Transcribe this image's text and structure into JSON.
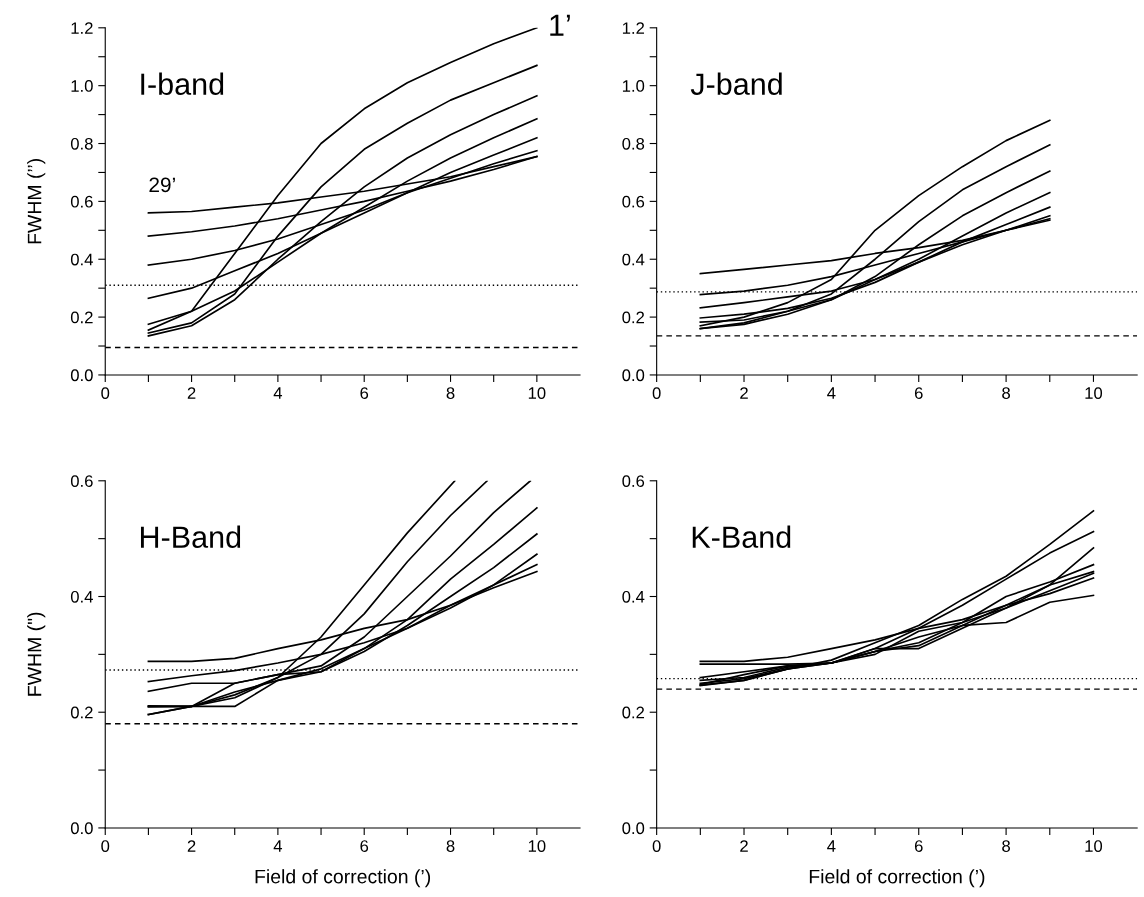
{
  "chart_data": [
    {
      "type": "line",
      "title": "I-band",
      "ylabel": "FWHM (’’)",
      "x": [
        1,
        2,
        3,
        4,
        5,
        6,
        7,
        8,
        9,
        10
      ],
      "xlim": [
        0,
        11
      ],
      "xticks": [
        0,
        {
          "value": 1,
          "label": null
        },
        2,
        {
          "value": 3,
          "label": null
        },
        4,
        {
          "value": 5,
          "label": null
        },
        6,
        {
          "value": 7,
          "label": null
        },
        8,
        {
          "value": 9,
          "label": null
        },
        10
      ],
      "ylim": [
        0,
        1.2
      ],
      "yticks": [
        {
          "value": 0,
          "label": "0.0"
        },
        {
          "value": 0.1,
          "label": null
        },
        {
          "value": 0.2,
          "label": "0.2"
        },
        {
          "value": 0.3,
          "label": null
        },
        {
          "value": 0.4,
          "label": "0.4"
        },
        {
          "value": 0.5,
          "label": null
        },
        {
          "value": 0.6,
          "label": "0.6"
        },
        {
          "value": 0.7,
          "label": null
        },
        {
          "value": 0.8,
          "label": "0.8"
        },
        {
          "value": 0.9,
          "label": null
        },
        {
          "value": 1.0,
          "label": "1.0"
        },
        {
          "value": 1.1,
          "label": null
        },
        {
          "value": 1.2,
          "label": "1.2"
        }
      ],
      "grid": false,
      "marker": "none",
      "line_style": "solid",
      "series": [
        {
          "color": "#000000",
          "values": [
            0.155,
            0.22,
            0.42,
            0.62,
            0.8,
            0.92,
            1.01,
            1.08,
            1.145,
            1.2
          ]
        },
        {
          "color": "#000000",
          "values": [
            0.145,
            0.18,
            0.28,
            0.48,
            0.65,
            0.78,
            0.87,
            0.95,
            1.01,
            1.07
          ]
        },
        {
          "color": "#000000",
          "values": [
            0.135,
            0.17,
            0.26,
            0.4,
            0.53,
            0.65,
            0.75,
            0.83,
            0.9,
            0.965
          ]
        },
        {
          "color": "#000000",
          "values": [
            0.175,
            0.22,
            0.29,
            0.39,
            0.49,
            0.58,
            0.67,
            0.75,
            0.82,
            0.885
          ]
        },
        {
          "color": "#000000",
          "values": [
            0.265,
            0.3,
            0.36,
            0.42,
            0.49,
            0.56,
            0.63,
            0.7,
            0.76,
            0.82
          ]
        },
        {
          "color": "#000000",
          "values": [
            0.38,
            0.4,
            0.43,
            0.47,
            0.52,
            0.57,
            0.63,
            0.68,
            0.73,
            0.775
          ]
        },
        {
          "color": "#000000",
          "values": [
            0.48,
            0.495,
            0.515,
            0.54,
            0.57,
            0.6,
            0.635,
            0.67,
            0.71,
            0.755
          ]
        },
        {
          "color": "#000000",
          "values": [
            0.56,
            0.565,
            0.58,
            0.595,
            0.615,
            0.635,
            0.66,
            0.685,
            0.72,
            0.755
          ]
        }
      ],
      "ref_lines": [
        {
          "axis": "y",
          "value": 0.31,
          "line_style": "dotted",
          "color": "#000000"
        },
        {
          "axis": "y",
          "value": 0.095,
          "line_style": "dashed",
          "color": "#000000"
        }
      ],
      "annotations": [
        {
          "text": "1’",
          "x": 10,
          "y": 1.2
        },
        {
          "text": "29’",
          "x": 1,
          "y": 0.56
        }
      ]
    },
    {
      "type": "line",
      "title": "J-band",
      "x": [
        1,
        2,
        3,
        4,
        5,
        6,
        7,
        8,
        9
      ],
      "xlim": [
        0,
        11
      ],
      "xticks": [
        0,
        {
          "value": 1,
          "label": null
        },
        2,
        {
          "value": 3,
          "label": null
        },
        4,
        {
          "value": 5,
          "label": null
        },
        6,
        {
          "value": 7,
          "label": null
        },
        8,
        {
          "value": 9,
          "label": null
        },
        10
      ],
      "ylim": [
        0,
        1.2
      ],
      "yticks": [
        {
          "value": 0,
          "label": "0.0"
        },
        {
          "value": 0.1,
          "label": null
        },
        {
          "value": 0.2,
          "label": "0.2"
        },
        {
          "value": 0.3,
          "label": null
        },
        {
          "value": 0.4,
          "label": "0.4"
        },
        {
          "value": 0.5,
          "label": null
        },
        {
          "value": 0.6,
          "label": "0.6"
        },
        {
          "value": 0.7,
          "label": null
        },
        {
          "value": 0.8,
          "label": "0.8"
        },
        {
          "value": 0.9,
          "label": null
        },
        {
          "value": 1.0,
          "label": "1.0"
        },
        {
          "value": 1.1,
          "label": null
        },
        {
          "value": 1.2,
          "label": "1.2"
        }
      ],
      "grid": false,
      "marker": "none",
      "line_style": "solid",
      "series": [
        {
          "color": "#000000",
          "values": [
            0.17,
            0.2,
            0.25,
            0.33,
            0.5,
            0.62,
            0.72,
            0.81,
            0.88
          ]
        },
        {
          "color": "#000000",
          "values": [
            0.16,
            0.18,
            0.22,
            0.28,
            0.4,
            0.53,
            0.64,
            0.72,
            0.795
          ]
        },
        {
          "color": "#000000",
          "values": [
            0.16,
            0.175,
            0.21,
            0.26,
            0.34,
            0.45,
            0.55,
            0.63,
            0.705
          ]
        },
        {
          "color": "#000000",
          "values": [
            0.183,
            0.19,
            0.22,
            0.26,
            0.33,
            0.4,
            0.48,
            0.56,
            0.63
          ]
        },
        {
          "color": "#000000",
          "values": [
            0.197,
            0.21,
            0.23,
            0.265,
            0.32,
            0.39,
            0.46,
            0.52,
            0.58
          ]
        },
        {
          "color": "#000000",
          "values": [
            0.232,
            0.25,
            0.27,
            0.29,
            0.33,
            0.39,
            0.45,
            0.5,
            0.55
          ]
        },
        {
          "color": "#000000",
          "values": [
            0.278,
            0.29,
            0.31,
            0.34,
            0.38,
            0.42,
            0.46,
            0.5,
            0.54
          ]
        },
        {
          "color": "#000000",
          "values": [
            0.35,
            0.365,
            0.38,
            0.395,
            0.42,
            0.44,
            0.465,
            0.5,
            0.535
          ]
        }
      ],
      "ref_lines": [
        {
          "axis": "y",
          "value": 0.287,
          "line_style": "dotted",
          "color": "#000000"
        },
        {
          "axis": "y",
          "value": 0.135,
          "line_style": "dashed",
          "color": "#000000"
        }
      ]
    },
    {
      "type": "line",
      "title": "H-Band",
      "ylabel": "FWHM (\")",
      "xlabel": "Field of correction (’)",
      "x": [
        1,
        2,
        3,
        4,
        5,
        6,
        7,
        8,
        9,
        10
      ],
      "xlim": [
        0,
        11
      ],
      "xticks": [
        0,
        {
          "value": 1,
          "label": null
        },
        2,
        {
          "value": 3,
          "label": null
        },
        4,
        {
          "value": 5,
          "label": null
        },
        6,
        {
          "value": 7,
          "label": null
        },
        8,
        {
          "value": 9,
          "label": null
        },
        10
      ],
      "ylim": [
        0,
        0.6
      ],
      "yticks": [
        {
          "value": 0,
          "label": "0.0"
        },
        {
          "value": 0.1,
          "label": null
        },
        {
          "value": 0.2,
          "label": "0.2"
        },
        {
          "value": 0.3,
          "label": null
        },
        {
          "value": 0.4,
          "label": "0.4"
        },
        {
          "value": 0.5,
          "label": null
        },
        {
          "value": 0.6,
          "label": "0.6"
        }
      ],
      "grid": false,
      "marker": "none",
      "line_style": "solid",
      "series": [
        {
          "color": "#000000",
          "x": [
            1,
            2,
            3,
            4,
            5,
            6,
            7,
            8.1
          ],
          "values": [
            0.196,
            0.21,
            0.23,
            0.26,
            0.33,
            0.42,
            0.51,
            0.6
          ]
        },
        {
          "color": "#000000",
          "x": [
            1,
            2,
            3,
            4,
            5,
            6,
            7,
            8,
            8.85
          ],
          "values": [
            0.21,
            0.21,
            0.225,
            0.26,
            0.3,
            0.37,
            0.46,
            0.54,
            0.6
          ]
        },
        {
          "color": "#000000",
          "x": [
            1,
            2,
            3,
            4,
            5,
            6,
            7,
            8,
            9,
            9.85
          ],
          "values": [
            0.211,
            0.21,
            0.25,
            0.265,
            0.28,
            0.33,
            0.4,
            0.47,
            0.545,
            0.6
          ]
        },
        {
          "color": "#000000",
          "values": [
            0.236,
            0.25,
            0.25,
            0.265,
            0.27,
            0.31,
            0.36,
            0.43,
            0.49,
            0.553
          ]
        },
        {
          "color": "#000000",
          "values": [
            0.209,
            0.21,
            0.21,
            0.255,
            0.27,
            0.305,
            0.35,
            0.4,
            0.45,
            0.508
          ]
        },
        {
          "color": "#000000",
          "values": [
            0.196,
            0.21,
            0.235,
            0.255,
            0.275,
            0.31,
            0.345,
            0.385,
            0.42,
            0.473
          ]
        },
        {
          "color": "#000000",
          "values": [
            0.253,
            0.263,
            0.272,
            0.285,
            0.3,
            0.32,
            0.345,
            0.38,
            0.42,
            0.455
          ]
        },
        {
          "color": "#000000",
          "values": [
            0.288,
            0.288,
            0.293,
            0.31,
            0.325,
            0.345,
            0.36,
            0.385,
            0.415,
            0.443
          ]
        }
      ],
      "ref_lines": [
        {
          "axis": "y",
          "value": 0.273,
          "line_style": "dotted",
          "color": "#000000"
        },
        {
          "axis": "y",
          "value": 0.18,
          "line_style": "dashed",
          "color": "#000000"
        }
      ]
    },
    {
      "type": "line",
      "title": "K-Band",
      "xlabel": "Field of correction (’)",
      "x": [
        1,
        2,
        3,
        4,
        5,
        6,
        7,
        8,
        9,
        10
      ],
      "xlim": [
        0,
        11
      ],
      "xticks": [
        0,
        {
          "value": 1,
          "label": null
        },
        2,
        {
          "value": 3,
          "label": null
        },
        4,
        {
          "value": 5,
          "label": null
        },
        6,
        {
          "value": 7,
          "label": null
        },
        8,
        {
          "value": 9,
          "label": null
        },
        10
      ],
      "ylim": [
        0,
        0.6
      ],
      "yticks": [
        {
          "value": 0,
          "label": "0.0"
        },
        {
          "value": 0.1,
          "label": null
        },
        {
          "value": 0.2,
          "label": "0.2"
        },
        {
          "value": 0.3,
          "label": null
        },
        {
          "value": 0.4,
          "label": "0.4"
        },
        {
          "value": 0.5,
          "label": null
        },
        {
          "value": 0.6,
          "label": "0.6"
        }
      ],
      "grid": false,
      "marker": "none",
      "line_style": "solid",
      "series": [
        {
          "color": "#000000",
          "values": [
            0.25,
            0.258,
            0.275,
            0.29,
            0.32,
            0.35,
            0.395,
            0.435,
            0.49,
            0.548
          ]
        },
        {
          "color": "#000000",
          "values": [
            0.255,
            0.26,
            0.278,
            0.285,
            0.31,
            0.345,
            0.385,
            0.43,
            0.475,
            0.512
          ]
        },
        {
          "color": "#000000",
          "values": [
            0.248,
            0.265,
            0.28,
            0.285,
            0.31,
            0.31,
            0.345,
            0.38,
            0.42,
            0.484
          ]
        },
        {
          "color": "#000000",
          "values": [
            0.26,
            0.27,
            0.28,
            0.285,
            0.305,
            0.32,
            0.355,
            0.4,
            0.425,
            0.455
          ]
        },
        {
          "color": "#000000",
          "values": [
            0.247,
            0.255,
            0.275,
            0.285,
            0.305,
            0.315,
            0.35,
            0.385,
            0.42,
            0.443
          ]
        },
        {
          "color": "#000000",
          "values": [
            0.283,
            0.283,
            0.283,
            0.285,
            0.3,
            0.34,
            0.355,
            0.38,
            0.41,
            0.44
          ]
        },
        {
          "color": "#000000",
          "values": [
            0.288,
            0.288,
            0.295,
            0.31,
            0.325,
            0.345,
            0.36,
            0.385,
            0.405,
            0.432
          ]
        },
        {
          "color": "#000000",
          "values": [
            0.246,
            0.255,
            0.275,
            0.285,
            0.305,
            0.33,
            0.35,
            0.355,
            0.39,
            0.402
          ]
        }
      ],
      "ref_lines": [
        {
          "axis": "y",
          "value": 0.258,
          "line_style": "dotted",
          "color": "#000000"
        },
        {
          "axis": "y",
          "value": 0.24,
          "line_style": "dashed",
          "color": "#000000"
        }
      ]
    }
  ]
}
